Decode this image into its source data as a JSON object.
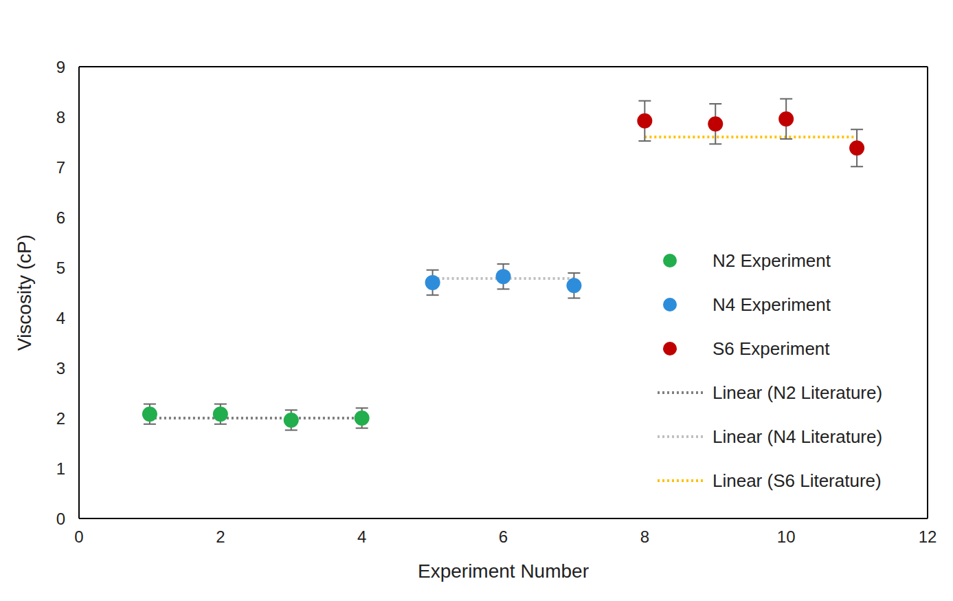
{
  "chart_data": {
    "type": "scatter",
    "x_label": "Experiment Number",
    "y_label": "Viscosity (cP)",
    "xlim": [
      0,
      12
    ],
    "xticks": [
      0,
      2,
      4,
      6,
      8,
      10,
      12
    ],
    "ylim": [
      0,
      9
    ],
    "yticks": [
      0,
      1,
      2,
      3,
      4,
      5,
      6,
      7,
      8,
      9
    ],
    "grid": false,
    "legend": "right",
    "series": [
      {
        "name": "N2 Experiment",
        "type": "scatter",
        "marker": "circle",
        "color": "#22ae4c",
        "x": [
          1,
          2,
          3,
          4
        ],
        "values": [
          2.08,
          2.08,
          1.96,
          2.0
        ],
        "error": [
          0.2,
          0.2,
          0.2,
          0.2
        ]
      },
      {
        "name": "N4 Experiment",
        "type": "scatter",
        "marker": "circle",
        "color": "#2e8ddb",
        "x": [
          5,
          6,
          7
        ],
        "values": [
          4.7,
          4.82,
          4.64
        ],
        "error": [
          0.25,
          0.25,
          0.25
        ]
      },
      {
        "name": "S6 Experiment",
        "type": "scatter",
        "marker": "circle",
        "color": "#c00000",
        "x": [
          8,
          9,
          10,
          11
        ],
        "values": [
          7.92,
          7.86,
          7.96,
          7.38
        ],
        "error": [
          0.4,
          0.4,
          0.4,
          0.37
        ]
      },
      {
        "name": "Linear (N2 Literature)",
        "type": "line",
        "line_style": "dotted",
        "color": "#7f7f7f",
        "x": [
          1,
          2,
          3,
          4
        ],
        "values": [
          2.0,
          2.0,
          2.0,
          2.0
        ]
      },
      {
        "name": "Linear (N4 Literature)",
        "type": "line",
        "line_style": "dotted",
        "color": "#bfbfbf",
        "x": [
          5,
          6,
          7
        ],
        "values": [
          4.78,
          4.78,
          4.78
        ]
      },
      {
        "name": "Linear (S6 Literature)",
        "type": "line",
        "line_style": "dotted",
        "color": "#ffc000",
        "x": [
          8,
          9,
          10,
          11
        ],
        "values": [
          7.6,
          7.6,
          7.6,
          7.6
        ]
      }
    ]
  }
}
